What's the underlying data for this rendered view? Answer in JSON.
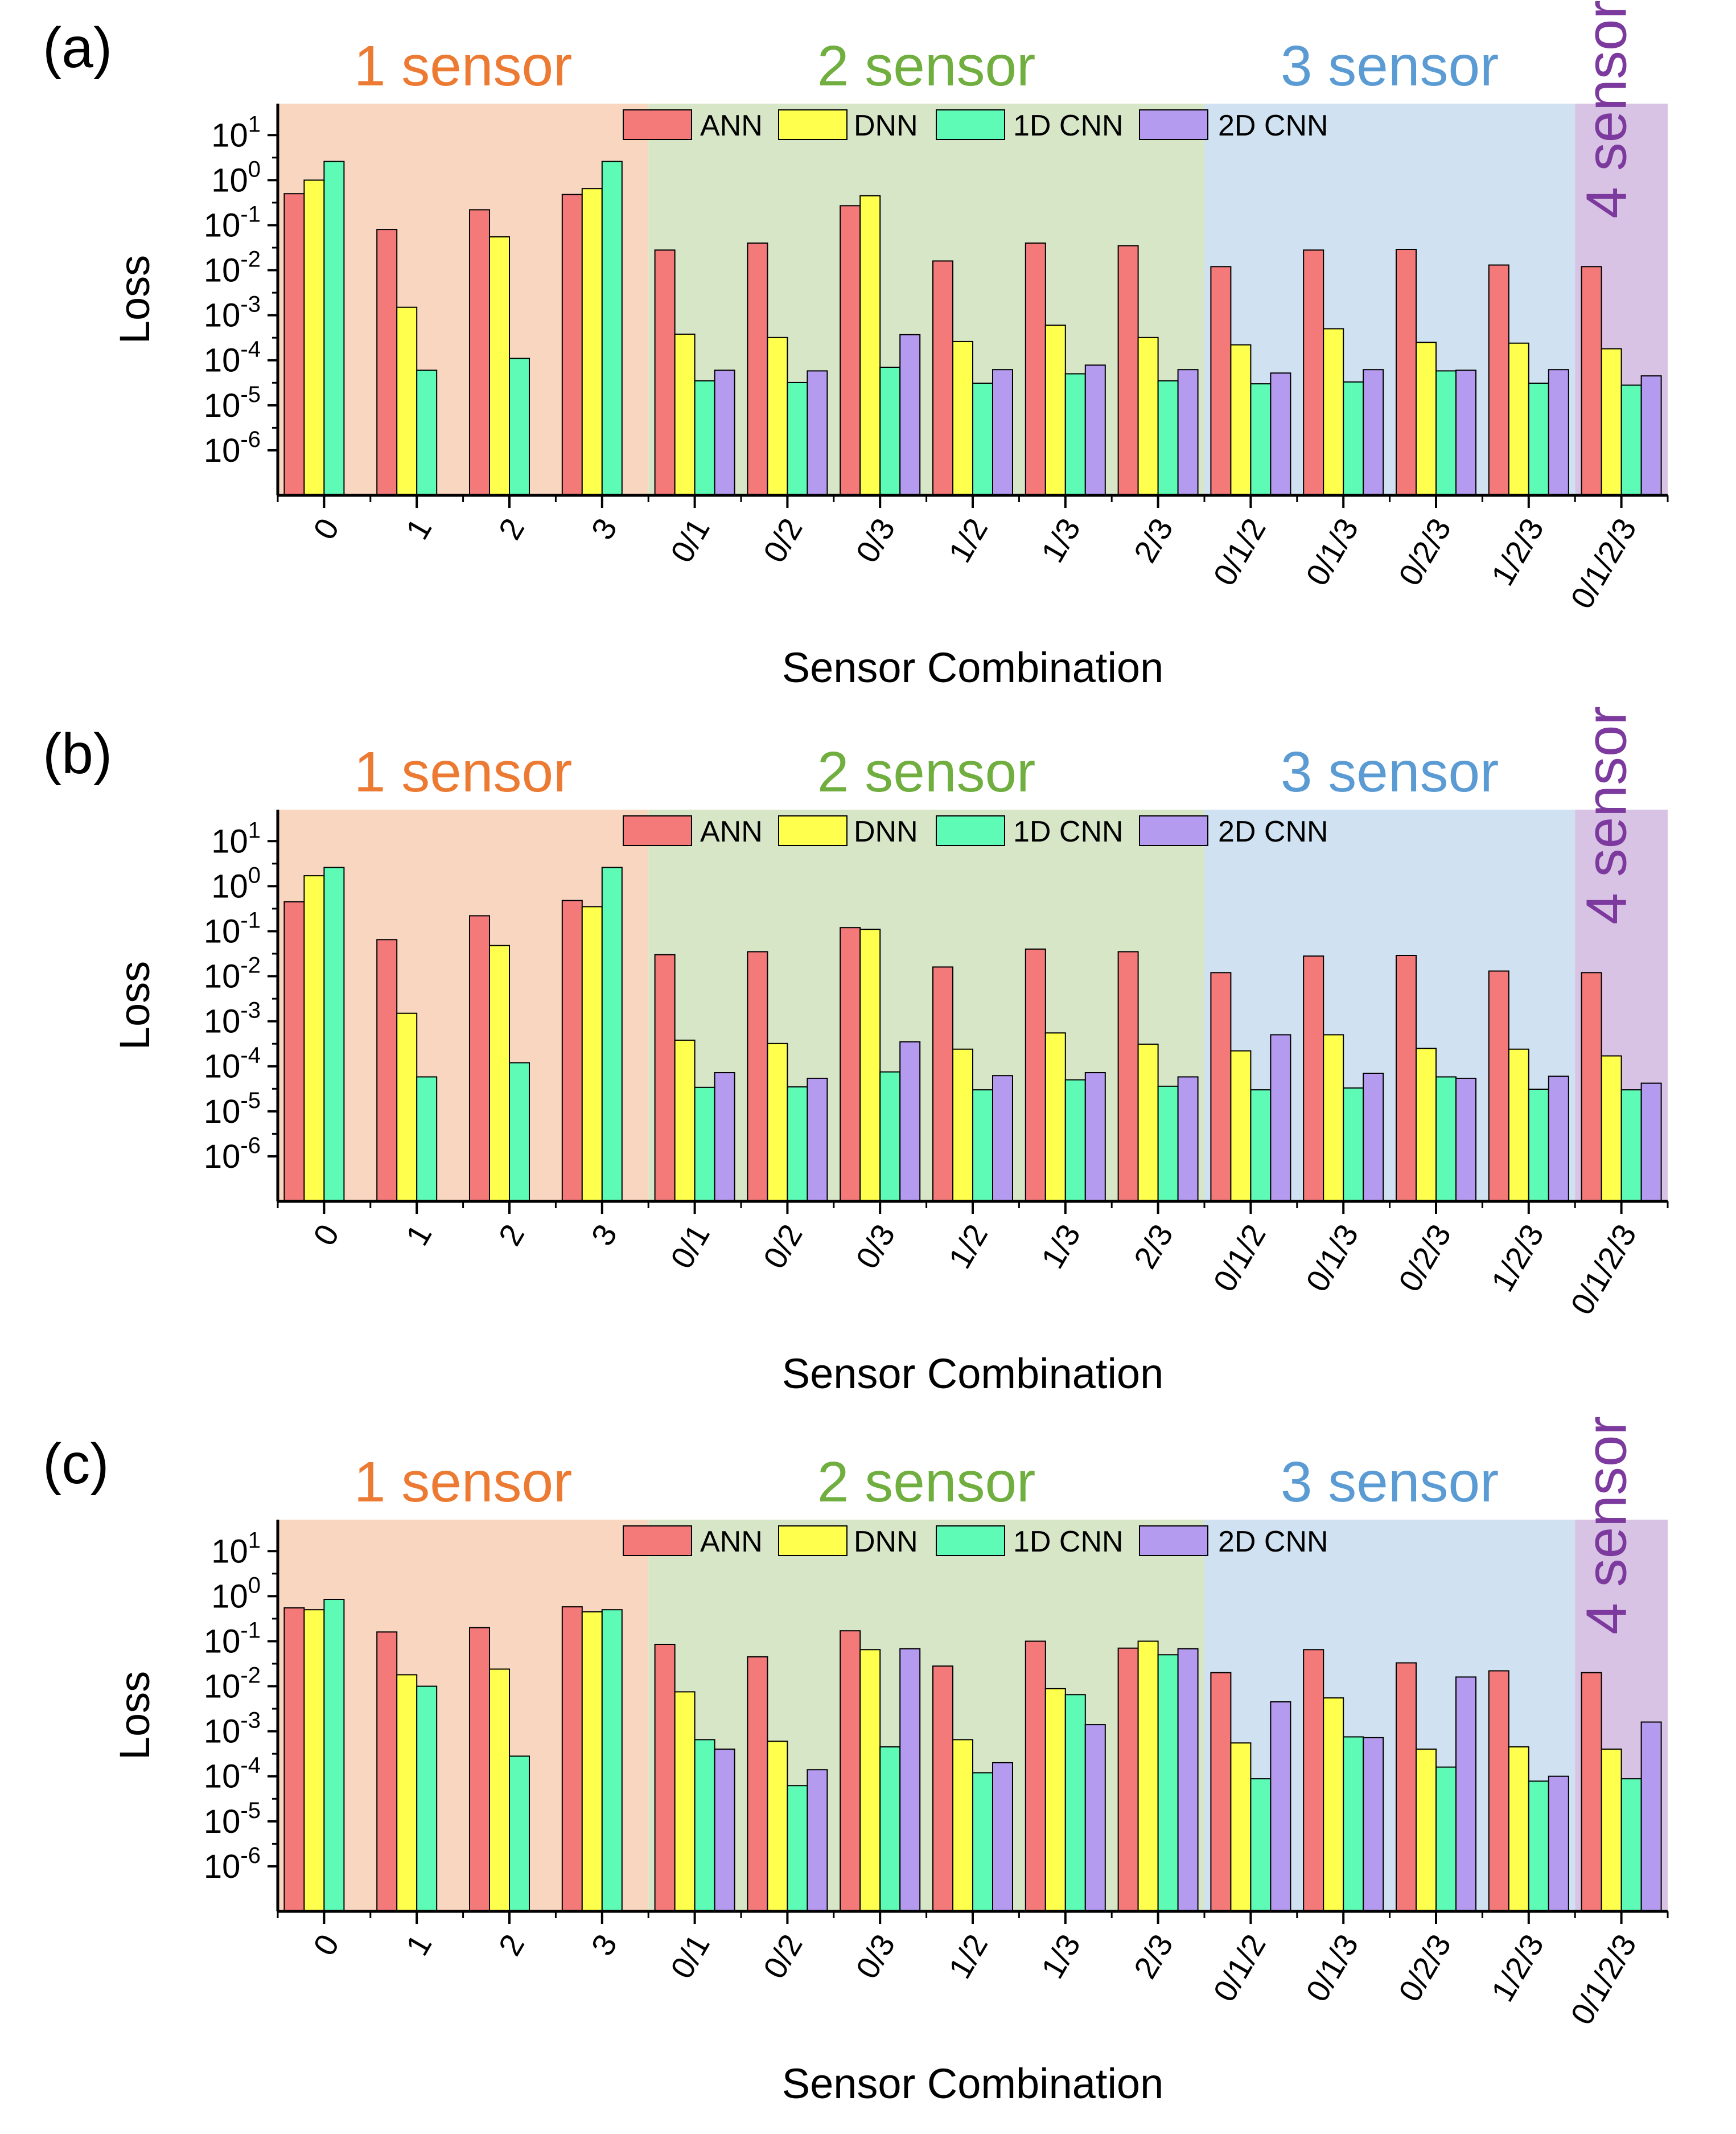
{
  "chart_data": [
    {
      "type": "bar",
      "panel_label": "(a)",
      "xlabel": "Sensor Combination",
      "ylabel": "Loss",
      "yscale": "log",
      "ylim": [
        1e-07,
        50
      ],
      "yticks": [
        {
          "base": "10",
          "exp": "1",
          "value": 10
        },
        {
          "base": "10",
          "exp": "0",
          "value": 1
        },
        {
          "base": "10",
          "exp": "-1",
          "value": 0.1
        },
        {
          "base": "10",
          "exp": "-2",
          "value": 0.01
        },
        {
          "base": "10",
          "exp": "-3",
          "value": 0.001
        },
        {
          "base": "10",
          "exp": "-4",
          "value": 0.0001
        },
        {
          "base": "10",
          "exp": "-5",
          "value": 1e-05
        },
        {
          "base": "10",
          "exp": "-6",
          "value": 1e-06
        }
      ],
      "categories": [
        "0",
        "1",
        "2",
        "3",
        "0/1",
        "0/2",
        "0/3",
        "1/2",
        "1/3",
        "2/3",
        "0/1/2",
        "0/1/3",
        "0/2/3",
        "1/2/3",
        "0/1/2/3"
      ],
      "regions": [
        {
          "label": "1 sensor",
          "from": 0,
          "to": 3,
          "fill": "#f9d6c0",
          "text_color": "#ec7a33",
          "vertical": false
        },
        {
          "label": "2 sensor",
          "from": 4,
          "to": 9,
          "fill": "#d8e6c8",
          "text_color": "#6fae3f",
          "vertical": false
        },
        {
          "label": "3 sensor",
          "from": 10,
          "to": 13,
          "fill": "#d0e2f1",
          "text_color": "#5b9bd3",
          "vertical": false
        },
        {
          "label": "4 sensor",
          "from": 14,
          "to": 14,
          "fill": "#d9c3e4",
          "text_color": "#7d3a9e",
          "vertical": true
        }
      ],
      "series": [
        {
          "name": "ANN",
          "color": "#f47a7a",
          "values": [
            0.5,
            0.08,
            0.22,
            0.48,
            0.028,
            0.04,
            0.27,
            0.016,
            0.04,
            0.035,
            0.012,
            0.028,
            0.029,
            0.013,
            0.012
          ]
        },
        {
          "name": "DNN",
          "color": "#ffff4d",
          "values": [
            1.0,
            0.0015,
            0.055,
            0.65,
            0.00038,
            0.00032,
            0.45,
            0.00026,
            0.0006,
            0.00032,
            0.00022,
            0.0005,
            0.00025,
            0.00024,
            0.00018
          ]
        },
        {
          "name": "1D CNN",
          "color": "#5dfbb6",
          "values": [
            2.6,
            6e-05,
            0.00011,
            2.6,
            3.5e-05,
            3.2e-05,
            7e-05,
            3.1e-05,
            5e-05,
            3.5e-05,
            3e-05,
            3.3e-05,
            5.8e-05,
            3.1e-05,
            2.8e-05
          ]
        },
        {
          "name": "2D CNN",
          "color": "#b59bef",
          "values": [
            null,
            null,
            null,
            null,
            6e-05,
            5.8e-05,
            0.00037,
            6.2e-05,
            7.8e-05,
            6.2e-05,
            5.2e-05,
            6.2e-05,
            6e-05,
            6.2e-05,
            4.5e-05
          ]
        }
      ]
    },
    {
      "type": "bar",
      "panel_label": "(b)",
      "xlabel": "Sensor Combination",
      "ylabel": "Loss",
      "yscale": "log",
      "ylim": [
        1e-07,
        50
      ],
      "yticks": [
        {
          "base": "10",
          "exp": "1",
          "value": 10
        },
        {
          "base": "10",
          "exp": "0",
          "value": 1
        },
        {
          "base": "10",
          "exp": "-1",
          "value": 0.1
        },
        {
          "base": "10",
          "exp": "-2",
          "value": 0.01
        },
        {
          "base": "10",
          "exp": "-3",
          "value": 0.001
        },
        {
          "base": "10",
          "exp": "-4",
          "value": 0.0001
        },
        {
          "base": "10",
          "exp": "-5",
          "value": 1e-05
        },
        {
          "base": "10",
          "exp": "-6",
          "value": 1e-06
        }
      ],
      "categories": [
        "0",
        "1",
        "2",
        "3",
        "0/1",
        "0/2",
        "0/3",
        "1/2",
        "1/3",
        "2/3",
        "0/1/2",
        "0/1/3",
        "0/2/3",
        "1/2/3",
        "0/1/2/3"
      ],
      "regions": [
        {
          "label": "1 sensor",
          "from": 0,
          "to": 3,
          "fill": "#f9d6c0",
          "text_color": "#ec7a33",
          "vertical": false
        },
        {
          "label": "2 sensor",
          "from": 4,
          "to": 9,
          "fill": "#d8e6c8",
          "text_color": "#6fae3f",
          "vertical": false
        },
        {
          "label": "3 sensor",
          "from": 10,
          "to": 13,
          "fill": "#d0e2f1",
          "text_color": "#5b9bd3",
          "vertical": false
        },
        {
          "label": "4 sensor",
          "from": 14,
          "to": 14,
          "fill": "#d9c3e4",
          "text_color": "#7d3a9e",
          "vertical": true
        }
      ],
      "series": [
        {
          "name": "ANN",
          "color": "#f47a7a",
          "values": [
            0.45,
            0.065,
            0.22,
            0.48,
            0.03,
            0.035,
            0.12,
            0.016,
            0.04,
            0.035,
            0.012,
            0.028,
            0.029,
            0.013,
            0.012
          ]
        },
        {
          "name": "DNN",
          "color": "#ffff4d",
          "values": [
            1.7,
            0.0015,
            0.048,
            0.35,
            0.00038,
            0.00032,
            0.11,
            0.00024,
            0.00055,
            0.00031,
            0.00022,
            0.0005,
            0.00025,
            0.00024,
            0.00017
          ]
        },
        {
          "name": "1D CNN",
          "color": "#5dfbb6",
          "values": [
            2.6,
            5.8e-05,
            0.00012,
            2.6,
            3.4e-05,
            3.5e-05,
            7.5e-05,
            3e-05,
            5e-05,
            3.6e-05,
            3e-05,
            3.3e-05,
            5.8e-05,
            3.1e-05,
            3e-05
          ]
        },
        {
          "name": "2D CNN",
          "color": "#b59bef",
          "values": [
            null,
            null,
            null,
            null,
            7.2e-05,
            5.4e-05,
            0.00035,
            6.2e-05,
            7.2e-05,
            5.8e-05,
            0.0005,
            7e-05,
            5.4e-05,
            6e-05,
            4.2e-05
          ]
        }
      ]
    },
    {
      "type": "bar",
      "panel_label": "(c)",
      "xlabel": "Sensor Combination",
      "ylabel": "Loss",
      "yscale": "log",
      "ylim": [
        1e-07,
        50
      ],
      "yticks": [
        {
          "base": "10",
          "exp": "1",
          "value": 10
        },
        {
          "base": "10",
          "exp": "0",
          "value": 1
        },
        {
          "base": "10",
          "exp": "-1",
          "value": 0.1
        },
        {
          "base": "10",
          "exp": "-2",
          "value": 0.01
        },
        {
          "base": "10",
          "exp": "-3",
          "value": 0.001
        },
        {
          "base": "10",
          "exp": "-4",
          "value": 0.0001
        },
        {
          "base": "10",
          "exp": "-5",
          "value": 1e-05
        },
        {
          "base": "10",
          "exp": "-6",
          "value": 1e-06
        }
      ],
      "categories": [
        "0",
        "1",
        "2",
        "3",
        "0/1",
        "0/2",
        "0/3",
        "1/2",
        "1/3",
        "2/3",
        "0/1/2",
        "0/1/3",
        "0/2/3",
        "1/2/3",
        "0/1/2/3"
      ],
      "regions": [
        {
          "label": "1 sensor",
          "from": 0,
          "to": 3,
          "fill": "#f9d6c0",
          "text_color": "#ec7a33",
          "vertical": false
        },
        {
          "label": "2 sensor",
          "from": 4,
          "to": 9,
          "fill": "#d8e6c8",
          "text_color": "#6fae3f",
          "vertical": false
        },
        {
          "label": "3 sensor",
          "from": 10,
          "to": 13,
          "fill": "#d0e2f1",
          "text_color": "#5b9bd3",
          "vertical": false
        },
        {
          "label": "4 sensor",
          "from": 14,
          "to": 14,
          "fill": "#d9c3e4",
          "text_color": "#7d3a9e",
          "vertical": true
        }
      ],
      "series": [
        {
          "name": "ANN",
          "color": "#f47a7a",
          "values": [
            0.55,
            0.16,
            0.2,
            0.58,
            0.085,
            0.045,
            0.17,
            0.028,
            0.1,
            0.07,
            0.02,
            0.065,
            0.033,
            0.022,
            0.02
          ]
        },
        {
          "name": "DNN",
          "color": "#ffff4d",
          "values": [
            0.5,
            0.018,
            0.024,
            0.45,
            0.0075,
            0.0006,
            0.065,
            0.00065,
            0.0088,
            0.1,
            0.00055,
            0.0055,
            0.0004,
            0.00045,
            0.0004
          ]
        },
        {
          "name": "1D CNN",
          "color": "#5dfbb6",
          "values": [
            0.85,
            0.01,
            0.00028,
            0.5,
            0.00065,
            6.2e-05,
            0.00045,
            0.00012,
            0.0065,
            0.05,
            8.8e-05,
            0.00075,
            0.00016,
            7.8e-05,
            8.8e-05
          ]
        },
        {
          "name": "2D CNN",
          "color": "#b59bef",
          "values": [
            null,
            null,
            null,
            null,
            0.0004,
            0.00014,
            0.068,
            0.0002,
            0.0014,
            0.068,
            0.0045,
            0.00072,
            0.016,
            0.0001,
            0.0016
          ]
        }
      ]
    }
  ]
}
